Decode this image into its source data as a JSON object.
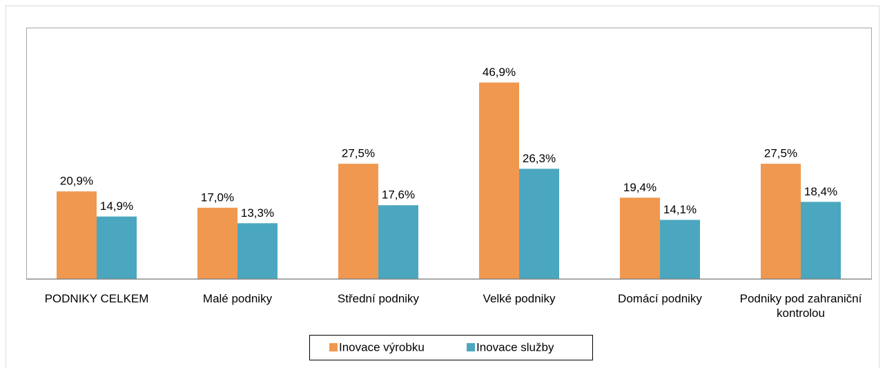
{
  "chart_data": {
    "type": "bar",
    "categories": [
      "PODNIKY CELKEM",
      "Malé podniky",
      "Střední podniky",
      "Velké podniky",
      "Domácí podniky",
      "Podniky pod zahraniční kontrolou"
    ],
    "series": [
      {
        "name": "Inovace výrobku",
        "color": "#f0984f",
        "values": [
          20.9,
          17.0,
          27.5,
          46.9,
          19.4,
          27.5
        ],
        "value_labels": [
          "20,9%",
          "17,0%",
          "27,5%",
          "46,9%",
          "19,4%",
          "27,5%"
        ]
      },
      {
        "name": "Inovace služby",
        "color": "#4ba7bf",
        "values": [
          14.9,
          13.3,
          17.6,
          26.3,
          14.1,
          18.4
        ],
        "value_labels": [
          "14,9%",
          "13,3%",
          "17,6%",
          "26,3%",
          "14,1%",
          "18,4%"
        ]
      }
    ],
    "ylim": [
      0,
      60
    ],
    "legend": "bottom"
  }
}
